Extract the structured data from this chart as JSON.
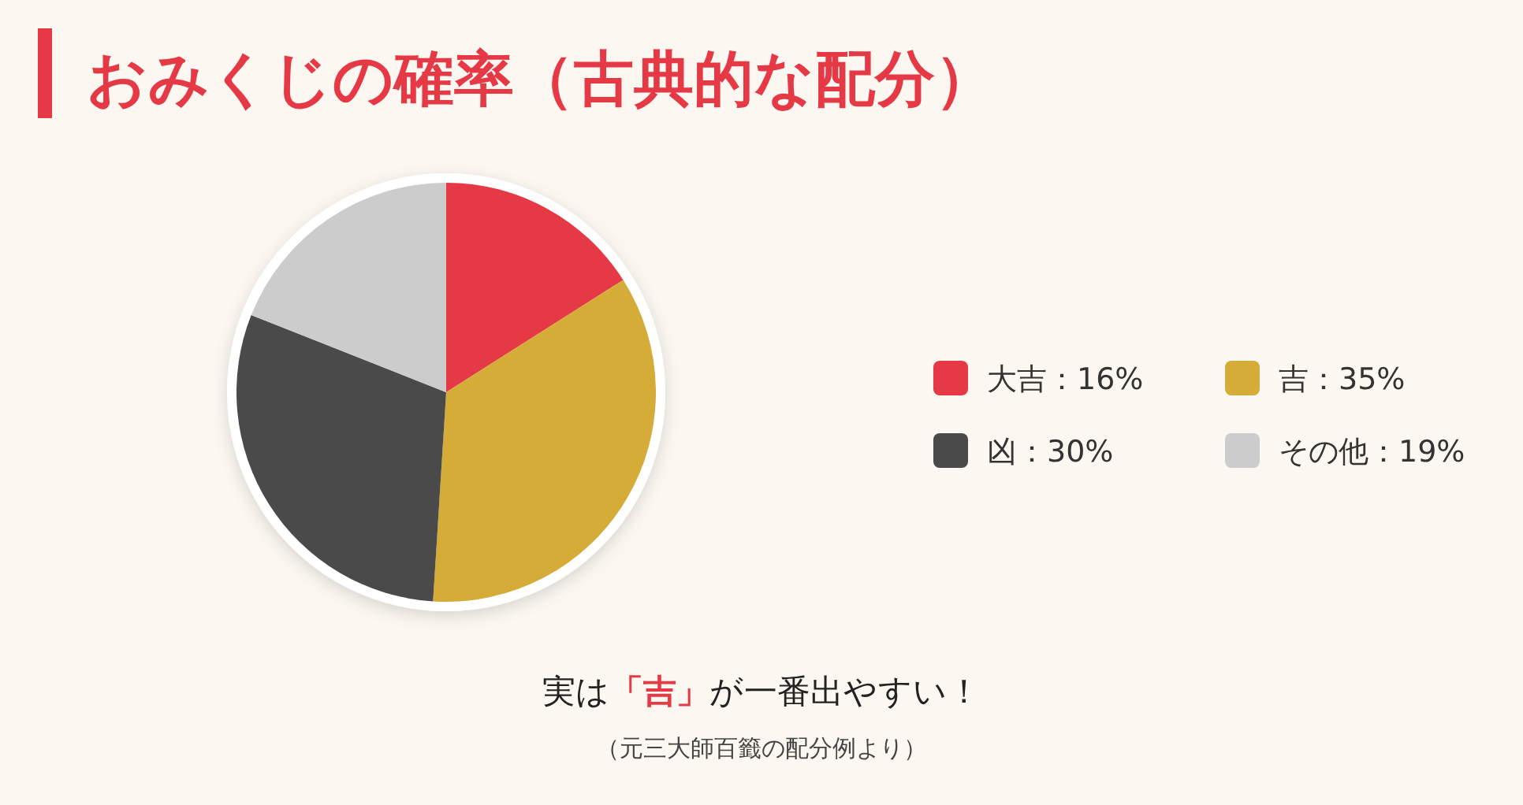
{
  "chart_data": {
    "type": "pie",
    "title": "おみくじの確率（古典的な配分）",
    "categories": [
      "大吉：16%",
      "吉：35%",
      "凶：30%",
      "その他：19%"
    ],
    "values": [
      16,
      35,
      30,
      19
    ],
    "colors": [
      "#e63946",
      "#d4ac37",
      "#4a4a4a",
      "#cccccc"
    ],
    "legend": "right",
    "annotations": [
      "実は「吉」が一番出やすい！",
      "（元三大師百籤の配分例より）"
    ]
  }
}
